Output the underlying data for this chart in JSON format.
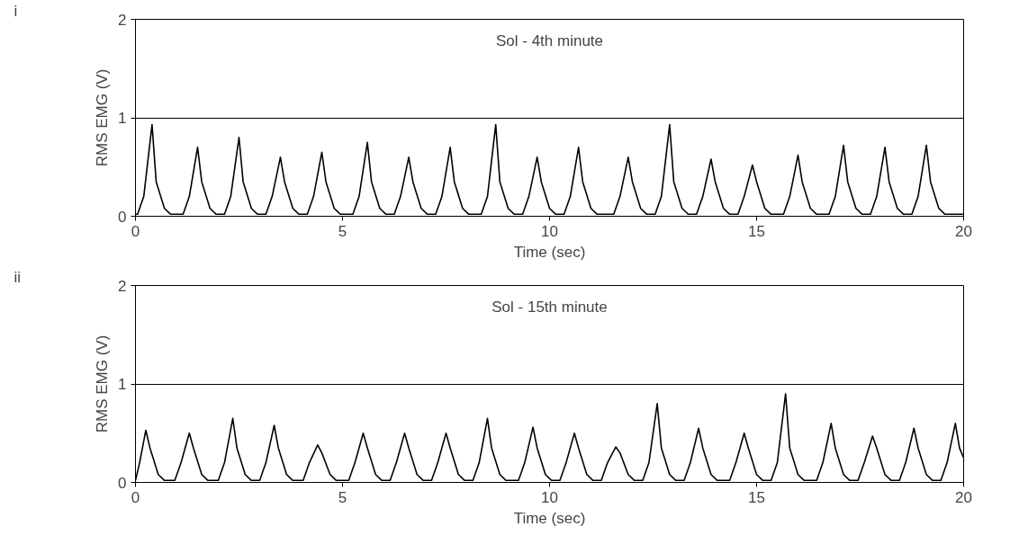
{
  "chart_data": [
    {
      "type": "line",
      "title": "Sol - 4th minute",
      "xlabel": "Time (sec)",
      "ylabel": "RMS EMG (V)",
      "annotations": [
        "i"
      ],
      "xlim": [
        0,
        20
      ],
      "ylim": [
        0,
        2
      ],
      "xticks": [
        0,
        5,
        10,
        15,
        20
      ],
      "yticks": [
        0,
        1,
        2
      ],
      "grid": "y",
      "line_style": "solid",
      "marker": "none",
      "series": [
        {
          "color": "#000000",
          "x": [
            0,
            0.05,
            0.2,
            0.4,
            0.5,
            0.7,
            0.85,
            1.15,
            1.3,
            1.5,
            1.6,
            1.8,
            1.95,
            2.15,
            2.3,
            2.5,
            2.6,
            2.8,
            2.95,
            3.15,
            3.3,
            3.5,
            3.6,
            3.8,
            3.95,
            4.15,
            4.3,
            4.5,
            4.6,
            4.8,
            4.95,
            5.25,
            5.4,
            5.6,
            5.7,
            5.9,
            6.05,
            6.25,
            6.4,
            6.6,
            6.7,
            6.9,
            7.05,
            7.25,
            7.4,
            7.6,
            7.7,
            7.9,
            8.05,
            8.35,
            8.5,
            8.7,
            8.8,
            9.0,
            9.15,
            9.35,
            9.5,
            9.7,
            9.8,
            10.0,
            10.15,
            10.35,
            10.5,
            10.7,
            10.8,
            11.0,
            11.15,
            11.55,
            11.7,
            11.9,
            12.0,
            12.2,
            12.35,
            12.55,
            12.7,
            12.9,
            13.0,
            13.2,
            13.35,
            13.55,
            13.7,
            13.9,
            14.0,
            14.2,
            14.35,
            14.55,
            14.7,
            14.9,
            15.0,
            15.2,
            15.35,
            15.65,
            15.8,
            16.0,
            16.1,
            16.3,
            16.45,
            16.75,
            16.9,
            17.1,
            17.2,
            17.4,
            17.55,
            17.75,
            17.9,
            18.1,
            18.2,
            18.4,
            18.55,
            18.75,
            18.9,
            19.1,
            19.2,
            19.4,
            19.55,
            20
          ],
          "values": [
            0.02,
            0.02,
            0.2,
            0.93,
            0.35,
            0.08,
            0.02,
            0.02,
            0.2,
            0.7,
            0.35,
            0.08,
            0.02,
            0.02,
            0.2,
            0.8,
            0.35,
            0.08,
            0.02,
            0.02,
            0.2,
            0.6,
            0.35,
            0.08,
            0.02,
            0.02,
            0.2,
            0.65,
            0.35,
            0.08,
            0.02,
            0.02,
            0.2,
            0.75,
            0.35,
            0.08,
            0.02,
            0.02,
            0.2,
            0.6,
            0.35,
            0.08,
            0.02,
            0.02,
            0.2,
            0.7,
            0.35,
            0.08,
            0.02,
            0.02,
            0.2,
            0.93,
            0.35,
            0.08,
            0.02,
            0.02,
            0.2,
            0.6,
            0.35,
            0.08,
            0.02,
            0.02,
            0.2,
            0.7,
            0.35,
            0.08,
            0.02,
            0.02,
            0.2,
            0.6,
            0.35,
            0.08,
            0.02,
            0.02,
            0.2,
            0.93,
            0.35,
            0.08,
            0.02,
            0.02,
            0.2,
            0.58,
            0.35,
            0.08,
            0.02,
            0.02,
            0.2,
            0.52,
            0.35,
            0.08,
            0.02,
            0.02,
            0.2,
            0.62,
            0.35,
            0.08,
            0.02,
            0.02,
            0.2,
            0.72,
            0.35,
            0.08,
            0.02,
            0.02,
            0.2,
            0.7,
            0.35,
            0.08,
            0.02,
            0.02,
            0.2,
            0.72,
            0.35,
            0.08,
            0.02,
            0.02
          ]
        }
      ]
    },
    {
      "type": "line",
      "title": "Sol - 15th minute",
      "xlabel": "Time (sec)",
      "ylabel": "RMS EMG (V)",
      "annotations": [
        "ii"
      ],
      "xlim": [
        0,
        20
      ],
      "ylim": [
        0,
        2
      ],
      "xticks": [
        0,
        5,
        10,
        15,
        20
      ],
      "yticks": [
        0,
        1,
        2
      ],
      "grid": "y",
      "line_style": "solid",
      "marker": "none",
      "series": [
        {
          "color": "#000000",
          "x": [
            0,
            0.1,
            0.25,
            0.35,
            0.55,
            0.7,
            0.95,
            1.1,
            1.3,
            1.4,
            1.6,
            1.75,
            2.0,
            2.15,
            2.35,
            2.45,
            2.65,
            2.8,
            3.0,
            3.15,
            3.35,
            3.45,
            3.65,
            3.8,
            4.05,
            4.2,
            4.4,
            4.5,
            4.7,
            4.85,
            5.15,
            5.3,
            5.5,
            5.6,
            5.8,
            5.95,
            6.15,
            6.3,
            6.5,
            6.6,
            6.8,
            6.95,
            7.15,
            7.3,
            7.5,
            7.6,
            7.8,
            7.95,
            8.15,
            8.3,
            8.5,
            8.6,
            8.8,
            8.95,
            9.25,
            9.4,
            9.6,
            9.7,
            9.9,
            10.05,
            10.25,
            10.4,
            10.6,
            10.7,
            10.9,
            11.05,
            11.25,
            11.4,
            11.6,
            11.7,
            11.9,
            12.05,
            12.25,
            12.4,
            12.6,
            12.7,
            12.9,
            13.05,
            13.25,
            13.4,
            13.6,
            13.7,
            13.9,
            14.05,
            14.35,
            14.5,
            14.7,
            14.8,
            15.0,
            15.15,
            15.35,
            15.5,
            15.7,
            15.8,
            16.0,
            16.15,
            16.45,
            16.6,
            16.8,
            16.9,
            17.1,
            17.25,
            17.45,
            17.6,
            17.8,
            17.9,
            18.1,
            18.25,
            18.45,
            18.6,
            18.8,
            18.9,
            19.1,
            19.25,
            19.45,
            19.6,
            19.8,
            19.9,
            20
          ],
          "values": [
            0.02,
            0.2,
            0.53,
            0.35,
            0.08,
            0.02,
            0.02,
            0.2,
            0.5,
            0.35,
            0.08,
            0.02,
            0.02,
            0.2,
            0.65,
            0.35,
            0.08,
            0.02,
            0.02,
            0.2,
            0.58,
            0.35,
            0.08,
            0.02,
            0.02,
            0.2,
            0.38,
            0.3,
            0.08,
            0.02,
            0.02,
            0.2,
            0.5,
            0.35,
            0.08,
            0.02,
            0.02,
            0.2,
            0.5,
            0.35,
            0.08,
            0.02,
            0.02,
            0.2,
            0.5,
            0.35,
            0.08,
            0.02,
            0.02,
            0.2,
            0.65,
            0.35,
            0.08,
            0.02,
            0.02,
            0.2,
            0.56,
            0.35,
            0.08,
            0.02,
            0.02,
            0.2,
            0.5,
            0.35,
            0.08,
            0.02,
            0.02,
            0.2,
            0.36,
            0.3,
            0.08,
            0.02,
            0.02,
            0.2,
            0.8,
            0.35,
            0.08,
            0.02,
            0.02,
            0.2,
            0.55,
            0.35,
            0.08,
            0.02,
            0.02,
            0.2,
            0.5,
            0.35,
            0.08,
            0.02,
            0.02,
            0.2,
            0.9,
            0.35,
            0.08,
            0.02,
            0.02,
            0.2,
            0.6,
            0.35,
            0.08,
            0.02,
            0.02,
            0.2,
            0.47,
            0.35,
            0.08,
            0.02,
            0.02,
            0.2,
            0.55,
            0.35,
            0.08,
            0.02,
            0.02,
            0.2,
            0.6,
            0.35,
            0.25
          ]
        }
      ]
    }
  ]
}
